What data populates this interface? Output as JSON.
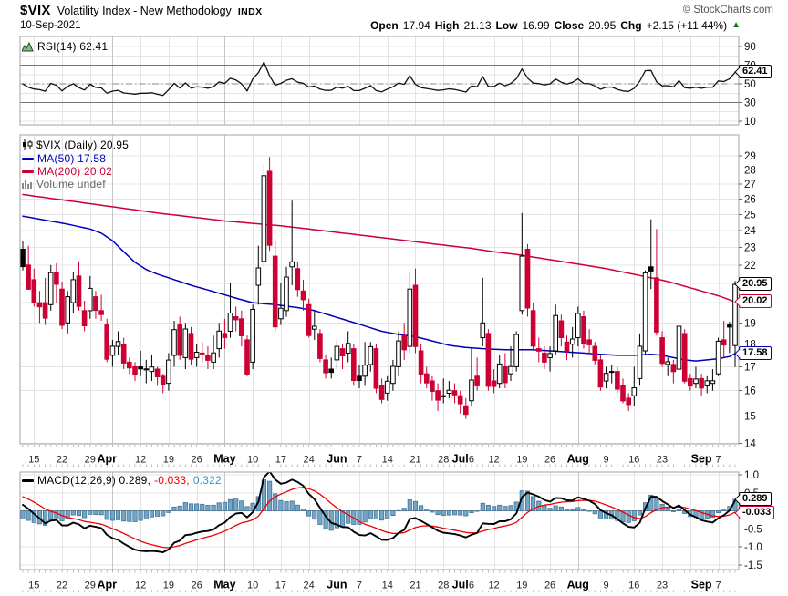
{
  "header": {
    "symbol": "$VIX",
    "title": "Volatility Index - New Methodology",
    "exchange": "INDX",
    "date": "10-Sep-2021",
    "copyright": "© StockCharts.com",
    "quote": {
      "open_label": "Open",
      "open": "17.94",
      "high_label": "High",
      "high": "21.13",
      "low_label": "Low",
      "low": "16.99",
      "close_label": "Close",
      "close": "20.95",
      "chg_label": "Chg",
      "chg": "+2.15 (+11.44%)",
      "chg_arrow": "▲"
    }
  },
  "panels": {
    "rsi": {
      "legend": "RSI(14) 62.41",
      "marker": "62.41"
    },
    "price": {
      "legend_main": "$VIX (Daily) 20.95",
      "legend_ma50": "MA(50) 17.58",
      "legend_ma200": "MA(200) 20.02",
      "legend_volume": "Volume undef",
      "marker_close": "20.95",
      "marker_ma200": "20.02",
      "marker_ma50": "17.58"
    },
    "macd": {
      "legend_base": "MACD(12,26,9) 0.289,",
      "legend_signal": " -0.033,",
      "legend_hist": " 0.322",
      "marker_macd": "0.289",
      "marker_signal": "-0.033"
    }
  },
  "colors": {
    "up": "#000000",
    "down": "#cc0033",
    "ma50": "#0000bb",
    "ma200": "#cc0033",
    "macd_line": "#000000",
    "signal": "#ee0000",
    "hist_fill": "#72a6c6",
    "hist_stroke": "#3e6f93",
    "teal": "#3399cc",
    "chg_up": "#007a00",
    "grid": "#e4e4e4",
    "grid_month": "#c6c6c6",
    "border": "#a3a3a3"
  },
  "chart_data": {
    "type": "candlestick",
    "symbol": "$VIX",
    "timeframe": "Daily",
    "date_range": "11-Mar-2021 to 10-Sep-2021",
    "last_close": 20.95,
    "price_axis": {
      "scale": "log",
      "ticks": [
        29,
        28,
        27,
        26,
        25,
        24,
        23,
        22,
        21,
        20,
        19,
        18,
        17,
        16,
        15,
        14
      ]
    },
    "rsi_axis": {
      "ticks": [
        90,
        70,
        50,
        30,
        10
      ],
      "overbought": 70,
      "midline": 50,
      "oversold": 30,
      "last": 62.41
    },
    "macd_axis": {
      "ticks": [
        1.0,
        0.5,
        0.0,
        -0.5,
        -1.0,
        -1.5
      ],
      "params": [
        12,
        26,
        9
      ],
      "last_macd": 0.289,
      "last_signal": -0.033,
      "last_hist": 0.322
    },
    "volume": "undef",
    "x_ticks": [
      {
        "i": 2,
        "t": "15"
      },
      {
        "i": 7,
        "t": "22"
      },
      {
        "i": 12,
        "t": "29"
      },
      {
        "i": 15,
        "t": "Apr",
        "m": 1
      },
      {
        "i": 21,
        "t": "12"
      },
      {
        "i": 26,
        "t": "19"
      },
      {
        "i": 31,
        "t": "26"
      },
      {
        "i": 36,
        "t": "May",
        "m": 1
      },
      {
        "i": 41,
        "t": "10"
      },
      {
        "i": 46,
        "t": "17"
      },
      {
        "i": 51,
        "t": "24"
      },
      {
        "i": 56,
        "t": "Jun",
        "m": 1
      },
      {
        "i": 60,
        "t": "7"
      },
      {
        "i": 65,
        "t": "14"
      },
      {
        "i": 70,
        "t": "21"
      },
      {
        "i": 75,
        "t": "28"
      },
      {
        "i": 78,
        "t": "Jul",
        "m": 1
      },
      {
        "i": 80,
        "t": "6"
      },
      {
        "i": 84,
        "t": "12"
      },
      {
        "i": 89,
        "t": "19"
      },
      {
        "i": 94,
        "t": "26"
      },
      {
        "i": 99,
        "t": "Aug",
        "m": 1
      },
      {
        "i": 104,
        "t": "9"
      },
      {
        "i": 109,
        "t": "16"
      },
      {
        "i": 114,
        "t": "23"
      },
      {
        "i": 121,
        "t": "Sep",
        "m": 1
      },
      {
        "i": 124,
        "t": "7"
      }
    ],
    "week_lines": [
      2,
      7,
      12,
      16,
      21,
      26,
      31,
      36,
      41,
      46,
      51,
      56,
      60,
      65,
      70,
      75,
      80,
      84,
      89,
      94,
      99,
      104,
      109,
      114,
      119,
      124
    ],
    "month_lines": [
      16,
      36,
      56,
      80,
      99
    ],
    "ohlc": [
      [
        22.9,
        23.4,
        21.7,
        21.91
      ],
      [
        22.0,
        23.1,
        20.8,
        20.69
      ],
      [
        21.2,
        21.8,
        19.8,
        20.03
      ],
      [
        20.0,
        20.6,
        19.0,
        19.79
      ],
      [
        20.0,
        21.3,
        18.9,
        19.23
      ],
      [
        19.9,
        22.0,
        19.6,
        21.58
      ],
      [
        21.6,
        22.1,
        20.0,
        20.95
      ],
      [
        20.7,
        21.1,
        18.7,
        18.88
      ],
      [
        19.0,
        20.6,
        18.5,
        20.3
      ],
      [
        20.0,
        21.6,
        19.5,
        21.2
      ],
      [
        21.4,
        22.2,
        19.6,
        19.81
      ],
      [
        19.6,
        20.1,
        18.6,
        18.86
      ],
      [
        19.6,
        21.4,
        19.2,
        20.74
      ],
      [
        20.3,
        20.6,
        19.2,
        19.61
      ],
      [
        19.6,
        20.4,
        19.1,
        19.4
      ],
      [
        18.9,
        19.2,
        17.2,
        17.33
      ],
      [
        17.5,
        18.2,
        17.0,
        17.91
      ],
      [
        17.9,
        18.6,
        17.5,
        18.12
      ],
      [
        18.0,
        18.3,
        16.9,
        17.16
      ],
      [
        17.2,
        17.4,
        16.7,
        16.95
      ],
      [
        17.0,
        17.2,
        16.4,
        16.69
      ],
      [
        17.0,
        17.7,
        16.6,
        16.91
      ],
      [
        16.9,
        17.3,
        16.3,
        16.91
      ],
      [
        16.8,
        17.5,
        16.4,
        16.99
      ],
      [
        16.9,
        17.0,
        16.2,
        16.57
      ],
      [
        16.6,
        16.7,
        15.9,
        16.25
      ],
      [
        16.3,
        17.6,
        16.0,
        17.29
      ],
      [
        17.5,
        19.1,
        17.0,
        18.68
      ],
      [
        18.9,
        19.3,
        17.3,
        17.5
      ],
      [
        17.4,
        19.0,
        16.9,
        18.71
      ],
      [
        18.5,
        18.8,
        17.1,
        17.33
      ],
      [
        17.4,
        18.0,
        17.0,
        17.64
      ],
      [
        17.6,
        18.1,
        17.2,
        17.56
      ],
      [
        17.5,
        17.9,
        16.9,
        17.28
      ],
      [
        17.2,
        18.4,
        16.9,
        17.61
      ],
      [
        17.8,
        19.0,
        17.4,
        18.61
      ],
      [
        18.5,
        19.2,
        17.8,
        18.31
      ],
      [
        18.6,
        21.0,
        18.3,
        19.48
      ],
      [
        19.3,
        19.8,
        18.6,
        19.15
      ],
      [
        19.2,
        19.6,
        17.9,
        18.39
      ],
      [
        18.2,
        18.4,
        16.6,
        16.69
      ],
      [
        17.2,
        19.9,
        16.9,
        19.66
      ],
      [
        20.9,
        23.1,
        19.9,
        21.84
      ],
      [
        22.2,
        28.4,
        21.9,
        27.59
      ],
      [
        27.9,
        28.93,
        22.8,
        23.13
      ],
      [
        22.5,
        23.4,
        18.6,
        18.81
      ],
      [
        19.2,
        21.0,
        18.9,
        19.72
      ],
      [
        19.6,
        21.9,
        19.3,
        21.34
      ],
      [
        21.9,
        25.9,
        20.9,
        22.18
      ],
      [
        21.8,
        22.2,
        20.3,
        20.67
      ],
      [
        20.6,
        21.2,
        19.6,
        20.15
      ],
      [
        19.9,
        20.2,
        18.3,
        18.4
      ],
      [
        18.7,
        19.6,
        18.2,
        18.84
      ],
      [
        18.5,
        18.7,
        17.2,
        17.36
      ],
      [
        17.3,
        17.5,
        16.5,
        16.74
      ],
      [
        16.9,
        17.4,
        16.5,
        16.76
      ],
      [
        17.3,
        18.2,
        16.9,
        17.9
      ],
      [
        17.8,
        18.0,
        16.9,
        17.48
      ],
      [
        17.6,
        18.6,
        17.2,
        18.04
      ],
      [
        17.8,
        18.0,
        16.2,
        16.42
      ],
      [
        16.6,
        17.1,
        16.1,
        16.42
      ],
      [
        16.6,
        18.1,
        16.2,
        17.07
      ],
      [
        17.1,
        18.1,
        16.8,
        17.89
      ],
      [
        17.8,
        18.0,
        15.9,
        16.1
      ],
      [
        16.2,
        16.5,
        15.5,
        15.65
      ],
      [
        15.9,
        16.6,
        15.6,
        16.39
      ],
      [
        16.3,
        17.3,
        16.0,
        17.02
      ],
      [
        17.0,
        18.6,
        16.6,
        18.15
      ],
      [
        18.4,
        19.0,
        17.3,
        17.75
      ],
      [
        17.9,
        21.6,
        17.6,
        20.7
      ],
      [
        20.9,
        21.8,
        17.6,
        17.89
      ],
      [
        17.7,
        18.0,
        16.3,
        16.66
      ],
      [
        16.7,
        17.0,
        16.1,
        16.32
      ],
      [
        16.4,
        16.6,
        15.6,
        15.97
      ],
      [
        16.0,
        16.3,
        15.2,
        15.62
      ],
      [
        15.8,
        16.5,
        15.5,
        15.76
      ],
      [
        15.9,
        16.4,
        15.7,
        16.02
      ],
      [
        16.0,
        16.3,
        15.5,
        15.83
      ],
      [
        15.8,
        16.0,
        15.1,
        15.48
      ],
      [
        15.4,
        15.7,
        14.9,
        15.07
      ],
      [
        15.6,
        17.8,
        15.4,
        16.44
      ],
      [
        16.6,
        17.4,
        16.0,
        16.2
      ],
      [
        18.3,
        21.3,
        17.9,
        19.0
      ],
      [
        18.5,
        18.7,
        16.0,
        16.18
      ],
      [
        16.4,
        16.9,
        15.9,
        16.17
      ],
      [
        16.3,
        17.5,
        16.1,
        17.12
      ],
      [
        17.0,
        17.6,
        16.1,
        16.33
      ],
      [
        16.7,
        17.9,
        16.4,
        17.01
      ],
      [
        17.0,
        18.6,
        16.8,
        18.45
      ],
      [
        19.6,
        25.1,
        19.4,
        22.5
      ],
      [
        22.9,
        23.2,
        19.3,
        19.73
      ],
      [
        19.6,
        20.0,
        17.7,
        17.91
      ],
      [
        17.8,
        18.3,
        17.2,
        17.69
      ],
      [
        17.6,
        17.9,
        16.9,
        17.2
      ],
      [
        17.4,
        17.9,
        16.8,
        17.58
      ],
      [
        17.7,
        19.9,
        17.5,
        19.36
      ],
      [
        19.1,
        19.4,
        17.9,
        18.3
      ],
      [
        18.1,
        18.4,
        17.3,
        17.7
      ],
      [
        18.0,
        18.8,
        17.4,
        18.24
      ],
      [
        18.3,
        19.8,
        17.9,
        19.46
      ],
      [
        19.3,
        19.6,
        17.8,
        18.04
      ],
      [
        18.2,
        18.7,
        17.6,
        17.97
      ],
      [
        17.9,
        18.1,
        17.1,
        17.28
      ],
      [
        17.3,
        17.5,
        16.0,
        16.15
      ],
      [
        16.4,
        17.0,
        16.1,
        16.72
      ],
      [
        16.8,
        17.1,
        16.3,
        16.79
      ],
      [
        16.8,
        17.0,
        15.9,
        16.06
      ],
      [
        16.2,
        16.5,
        15.5,
        15.59
      ],
      [
        15.7,
        15.9,
        15.2,
        15.45
      ],
      [
        15.8,
        17.0,
        15.4,
        16.12
      ],
      [
        16.5,
        18.5,
        16.2,
        17.91
      ],
      [
        17.7,
        21.7,
        17.5,
        21.57
      ],
      [
        21.9,
        24.7,
        20.7,
        21.67
      ],
      [
        21.3,
        24.1,
        18.4,
        18.56
      ],
      [
        18.3,
        18.6,
        17.0,
        17.15
      ],
      [
        17.1,
        17.4,
        16.6,
        17.22
      ],
      [
        17.1,
        17.3,
        16.3,
        16.79
      ],
      [
        16.9,
        18.9,
        16.6,
        18.84
      ],
      [
        18.5,
        18.7,
        16.3,
        16.39
      ],
      [
        16.5,
        16.7,
        16.0,
        16.19
      ],
      [
        16.3,
        17.0,
        16.1,
        16.48
      ],
      [
        16.5,
        16.7,
        15.8,
        16.11
      ],
      [
        16.2,
        16.6,
        15.9,
        16.41
      ],
      [
        16.3,
        16.9,
        16.0,
        16.41
      ],
      [
        16.7,
        18.3,
        16.6,
        18.14
      ],
      [
        18.2,
        19.1,
        17.4,
        17.96
      ],
      [
        18.9,
        19.05,
        17.6,
        18.8
      ],
      [
        17.94,
        21.13,
        16.99,
        20.95
      ]
    ],
    "ma50_points": [
      [
        0,
        24.9
      ],
      [
        4,
        24.65
      ],
      [
        8,
        24.4
      ],
      [
        12,
        24.1
      ],
      [
        14,
        23.85
      ],
      [
        16,
        23.4
      ],
      [
        18,
        22.75
      ],
      [
        20,
        22.15
      ],
      [
        22,
        21.75
      ],
      [
        24,
        21.5
      ],
      [
        27,
        21.2
      ],
      [
        30,
        20.9
      ],
      [
        33,
        20.65
      ],
      [
        36,
        20.4
      ],
      [
        39,
        20.15
      ],
      [
        41,
        20.0
      ],
      [
        45,
        19.9
      ],
      [
        49,
        19.75
      ],
      [
        52,
        19.6
      ],
      [
        55,
        19.35
      ],
      [
        58,
        19.1
      ],
      [
        61,
        18.85
      ],
      [
        64,
        18.6
      ],
      [
        67,
        18.45
      ],
      [
        70,
        18.35
      ],
      [
        73,
        18.15
      ],
      [
        76,
        17.95
      ],
      [
        79,
        17.85
      ],
      [
        82,
        17.8
      ],
      [
        86,
        17.75
      ],
      [
        91,
        17.75
      ],
      [
        94,
        17.7
      ],
      [
        97,
        17.65
      ],
      [
        100,
        17.6
      ],
      [
        103,
        17.55
      ],
      [
        106,
        17.5
      ],
      [
        109,
        17.5
      ],
      [
        112,
        17.55
      ],
      [
        114,
        17.5
      ],
      [
        116,
        17.4
      ],
      [
        118,
        17.3
      ],
      [
        120,
        17.25
      ],
      [
        122,
        17.3
      ],
      [
        124,
        17.35
      ],
      [
        126,
        17.45
      ],
      [
        127,
        17.58
      ]
    ],
    "ma200_points": [
      [
        0,
        26.3
      ],
      [
        6,
        26.0
      ],
      [
        12,
        25.7
      ],
      [
        18,
        25.4
      ],
      [
        24,
        25.1
      ],
      [
        30,
        24.85
      ],
      [
        36,
        24.6
      ],
      [
        41,
        24.45
      ],
      [
        46,
        24.3
      ],
      [
        51,
        24.1
      ],
      [
        56,
        23.9
      ],
      [
        61,
        23.7
      ],
      [
        66,
        23.5
      ],
      [
        71,
        23.3
      ],
      [
        76,
        23.1
      ],
      [
        80,
        22.95
      ],
      [
        84,
        22.75
      ],
      [
        88,
        22.6
      ],
      [
        92,
        22.4
      ],
      [
        96,
        22.2
      ],
      [
        100,
        22.0
      ],
      [
        104,
        21.8
      ],
      [
        108,
        21.55
      ],
      [
        112,
        21.3
      ],
      [
        115,
        21.1
      ],
      [
        118,
        20.85
      ],
      [
        121,
        20.6
      ],
      [
        124,
        20.35
      ],
      [
        126,
        20.15
      ],
      [
        127,
        20.02
      ]
    ]
  }
}
